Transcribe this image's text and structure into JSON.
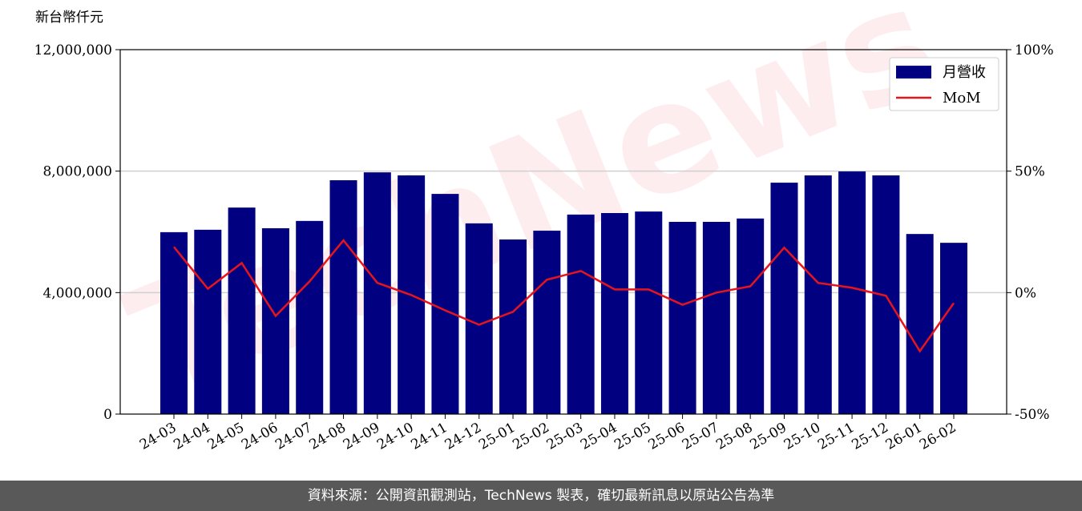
{
  "chart_data": {
    "type": "combo",
    "y_label": "新台幣仟元",
    "watermark": "TechNews",
    "categories": [
      "24-03",
      "24-04",
      "24-05",
      "24-06",
      "24-07",
      "24-08",
      "24-09",
      "24-10",
      "24-11",
      "24-12",
      "25-01",
      "25-02",
      "25-03",
      "25-04",
      "25-05",
      "25-06",
      "25-07",
      "25-08",
      "25-09",
      "25-10",
      "25-11",
      "25-12",
      "26-01",
      "26-02"
    ],
    "series": [
      {
        "name": "月營收",
        "type": "bar",
        "axis": "y",
        "color": "#000080",
        "values": [
          5990000,
          6070000,
          6800000,
          6120000,
          6360000,
          7700000,
          7960000,
          7860000,
          7250000,
          6280000,
          5750000,
          6040000,
          6570000,
          6620000,
          6670000,
          6330000,
          6330000,
          6440000,
          7620000,
          7860000,
          7990000,
          7860000,
          5930000,
          5640000
        ]
      },
      {
        "name": "MoM",
        "type": "line",
        "axis": "y2",
        "color": "#e8141b",
        "values": [
          18.8,
          1.6,
          12.2,
          -9.6,
          4.6,
          21.5,
          4.0,
          -1.0,
          -7.3,
          -13.2,
          -7.9,
          5.3,
          8.9,
          1.3,
          1.3,
          -5.0,
          0,
          2.6,
          18.5,
          4.0,
          2.0,
          -1.3,
          -24.1,
          -4.3
        ]
      }
    ],
    "ylim": [
      0,
      12000000
    ],
    "yticks": [
      {
        "value": 0,
        "label": "0"
      },
      {
        "value": 4000000,
        "label": "4,000,000"
      },
      {
        "value": 8000000,
        "label": "8,000,000"
      },
      {
        "value": 12000000,
        "label": "12,000,000"
      }
    ],
    "y2lim": [
      -50,
      100
    ],
    "y2ticks": [
      {
        "value": -50,
        "label": "-50%"
      },
      {
        "value": 0,
        "label": "0%"
      },
      {
        "value": 50,
        "label": "50%"
      },
      {
        "value": 100,
        "label": "100%"
      }
    ],
    "grid": true,
    "legend": "upper right"
  },
  "footer": "資料來源：公開資訊觀測站，TechNews 製表，確切最新訊息以原站公告為準"
}
